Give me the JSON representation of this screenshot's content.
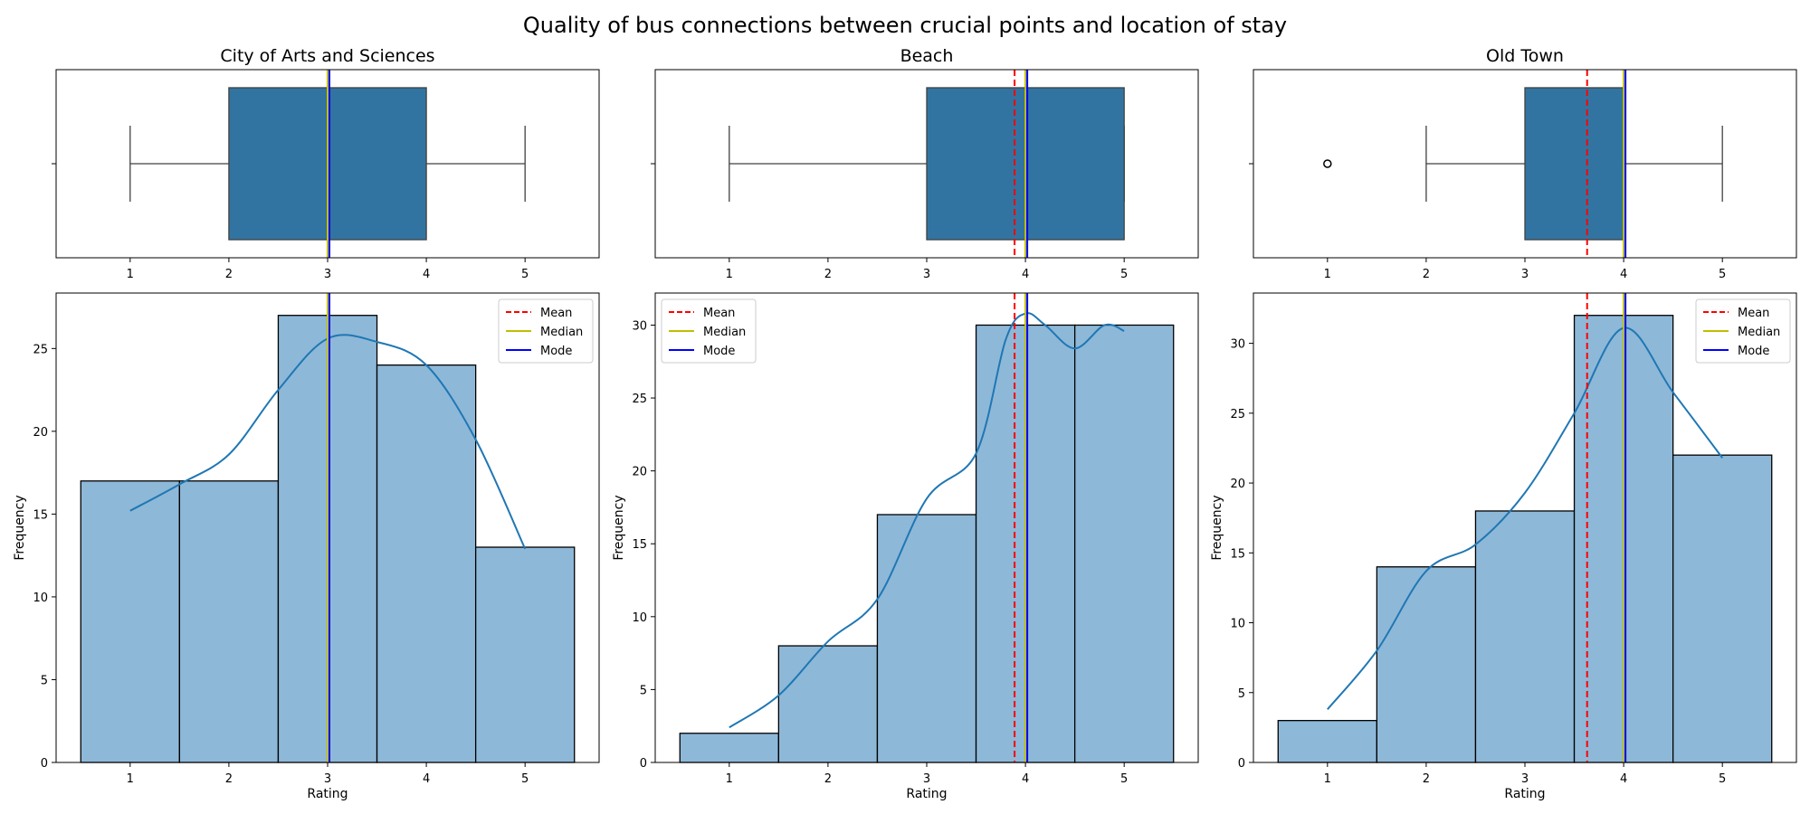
{
  "title": "Quality of bus connections between crucial points and location of stay",
  "colors": {
    "box_fill": "#3274a1",
    "hist_fill": "#8eb8d8",
    "kde_line": "#1f77b4",
    "mean_line": "#ff0000",
    "median_line": "#bfbf00",
    "mode_line": "#0000ff",
    "axis": "#000000",
    "whisker": "#404040"
  },
  "legend_labels": [
    "Mean",
    "Median",
    "Mode"
  ],
  "chart_data": [
    {
      "type": "boxplot",
      "title": "City of Arts and Sciences",
      "xlim": [
        0.25,
        5.75
      ],
      "x_ticks": [
        1,
        2,
        3,
        4,
        5
      ],
      "box": {
        "whisker_low": 1,
        "q1": 2,
        "median": 3,
        "q3": 4,
        "whisker_high": 5,
        "outliers": []
      },
      "mean": 3.0,
      "median": 3,
      "mode": 3
    },
    {
      "type": "boxplot",
      "title": "Beach",
      "xlim": [
        0.25,
        5.75
      ],
      "x_ticks": [
        1,
        2,
        3,
        4,
        5
      ],
      "box": {
        "whisker_low": 1,
        "q1": 3,
        "median": 4,
        "q3": 5,
        "whisker_high": 5,
        "outliers": []
      },
      "mean": 3.89,
      "median": 4,
      "mode": 4
    },
    {
      "type": "boxplot",
      "title": "Old Town",
      "xlim": [
        0.25,
        5.75
      ],
      "x_ticks": [
        1,
        2,
        3,
        4,
        5
      ],
      "box": {
        "whisker_low": 2,
        "q1": 3,
        "median": 4,
        "q3": 4,
        "whisker_high": 5,
        "outliers": [
          1
        ]
      },
      "mean": 3.63,
      "median": 4,
      "mode": 4
    },
    {
      "type": "bar",
      "subtype": "histogram",
      "xlabel": "Rating",
      "ylabel": "Frequency",
      "xlim": [
        0.25,
        5.75
      ],
      "ylim": [
        0,
        28.35
      ],
      "x_ticks": [
        1,
        2,
        3,
        4,
        5
      ],
      "y_ticks": [
        0,
        5,
        10,
        15,
        20,
        25
      ],
      "categories": [
        1,
        2,
        3,
        4,
        5
      ],
      "values": [
        17,
        17,
        27,
        24,
        13
      ],
      "kde": {
        "x": [
          1,
          1.5,
          2,
          2.5,
          3,
          3.5,
          4,
          4.5,
          5
        ],
        "y": [
          15.2,
          16.8,
          18.6,
          22.5,
          25.6,
          25.4,
          24,
          19.5,
          12.9
        ]
      },
      "mean": 3.0,
      "median": 3,
      "mode": 3,
      "legend": "top-right"
    },
    {
      "type": "bar",
      "subtype": "histogram",
      "xlabel": "Rating",
      "ylabel": "Frequency",
      "xlim": [
        0.25,
        5.75
      ],
      "ylim": [
        0,
        32.2
      ],
      "x_ticks": [
        1,
        2,
        3,
        4,
        5
      ],
      "y_ticks": [
        0,
        5,
        10,
        15,
        20,
        25,
        30
      ],
      "categories": [
        1,
        2,
        3,
        4,
        5
      ],
      "values": [
        2,
        8,
        17,
        30,
        30
      ],
      "kde": {
        "x": [
          1,
          1.5,
          2,
          2.5,
          3,
          3.5,
          3.8,
          4,
          4.2,
          4.5,
          4.8,
          5
        ],
        "y": [
          2.4,
          4.6,
          8.3,
          11.2,
          18.1,
          21.2,
          29.0,
          30.8,
          30.0,
          28.4,
          30.0,
          29.6
        ]
      },
      "mean": 3.89,
      "median": 4,
      "mode": 4,
      "legend": "top-left"
    },
    {
      "type": "bar",
      "subtype": "histogram",
      "xlabel": "Rating",
      "ylabel": "Frequency",
      "xlim": [
        0.25,
        5.75
      ],
      "ylim": [
        0,
        33.6
      ],
      "x_ticks": [
        1,
        2,
        3,
        4,
        5
      ],
      "y_ticks": [
        0,
        5,
        10,
        15,
        20,
        25,
        30
      ],
      "categories": [
        1,
        2,
        3,
        4,
        5
      ],
      "values": [
        3,
        14,
        18,
        32,
        22
      ],
      "kde": {
        "x": [
          1,
          1.5,
          2,
          2.5,
          3,
          3.5,
          4,
          4.5,
          5
        ],
        "y": [
          3.8,
          8.0,
          13.7,
          15.6,
          19.3,
          25.0,
          31.1,
          26.5,
          21.8
        ]
      },
      "mean": 3.63,
      "median": 4,
      "mode": 4,
      "legend": "top-right"
    }
  ]
}
